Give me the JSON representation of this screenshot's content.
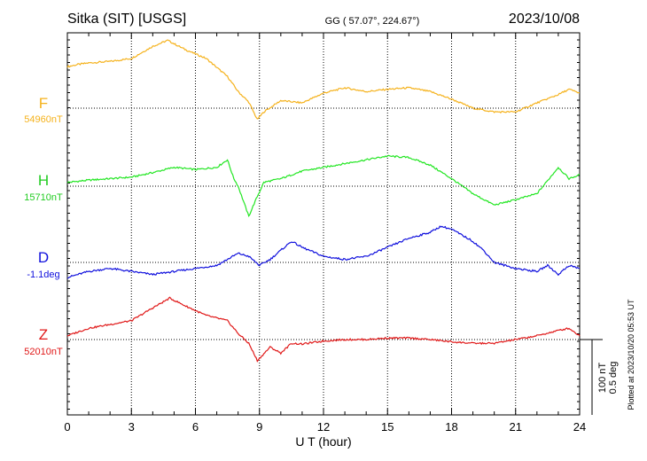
{
  "header": {
    "station": "Sitka (SIT)  [USGS]",
    "coords": "GG ( 57.07°, 224.67°)",
    "date": "2023/10/08"
  },
  "plotted_note": "Plotted at 2023/10/20 05:53 UT",
  "scale_bar": {
    "nt": "100 nT",
    "deg": "0.5 deg"
  },
  "colors": {
    "F": "#f5b21c",
    "H": "#22e622",
    "D": "#1010dd",
    "Z": "#e01818",
    "axis": "#000000"
  },
  "chart_data": {
    "type": "line",
    "xlabel": "U T (hour)",
    "xlim": [
      0,
      24
    ],
    "x_ticks": [
      "0",
      "3",
      "6",
      "9",
      "12",
      "15",
      "18",
      "21",
      "24"
    ],
    "series": [
      {
        "name": "F",
        "baseline_label": "54960nT",
        "baseline": 54960,
        "unit": "nT",
        "x": [
          0,
          0.5,
          1,
          2,
          3,
          4,
          4.7,
          5.5,
          6.5,
          7.5,
          8,
          8.5,
          8.9,
          9.2,
          10,
          11,
          12,
          13,
          14,
          15,
          16,
          17,
          18,
          19,
          20,
          21,
          22,
          23,
          23.5,
          24
        ],
        "y": [
          55,
          58,
          60,
          62,
          66,
          82,
          90,
          78,
          66,
          42,
          22,
          8,
          -15,
          -5,
          10,
          7,
          20,
          27,
          22,
          25,
          27,
          22,
          12,
          0,
          -5,
          -5,
          7,
          18,
          25,
          20
        ]
      },
      {
        "name": "H",
        "baseline_label": "15710nT",
        "baseline": 15710,
        "unit": "nT",
        "x": [
          0,
          1,
          2,
          3,
          4,
          5,
          6,
          7,
          7.5,
          7.8,
          8,
          8.5,
          8.8,
          9.2,
          10,
          11,
          12,
          13,
          14,
          15,
          16,
          17,
          18,
          19,
          20,
          21,
          22,
          23,
          23.5,
          24
        ],
        "y": [
          5,
          8,
          10,
          12,
          18,
          25,
          22,
          25,
          35,
          10,
          0,
          -40,
          -20,
          5,
          10,
          20,
          25,
          30,
          35,
          40,
          38,
          28,
          10,
          -10,
          -25,
          -18,
          -10,
          25,
          10,
          15
        ]
      },
      {
        "name": "D",
        "baseline_label": "-1.1deg",
        "baseline": -1.1,
        "unit": "deg",
        "x": [
          0,
          1,
          2,
          3,
          4,
          5,
          6,
          7,
          7.5,
          8,
          8.5,
          9,
          9.5,
          10,
          10.5,
          11,
          12,
          13,
          14,
          15,
          16,
          17,
          17.5,
          18,
          19,
          19.5,
          20,
          21,
          22,
          22.5,
          23,
          23.5,
          24
        ],
        "y": [
          -0.1,
          -0.06,
          -0.04,
          -0.06,
          -0.08,
          -0.06,
          -0.04,
          -0.02,
          0.02,
          0.06,
          0.04,
          -0.02,
          0.02,
          0.08,
          0.14,
          0.1,
          0.04,
          0.02,
          0.04,
          0.1,
          0.16,
          0.2,
          0.24,
          0.22,
          0.14,
          0.08,
          0.0,
          -0.04,
          -0.06,
          -0.02,
          -0.08,
          -0.02,
          -0.04
        ]
      },
      {
        "name": "Z",
        "baseline_label": "52010nT",
        "baseline": 52010,
        "unit": "nT",
        "x": [
          0,
          1,
          2,
          3,
          4,
          4.8,
          5.5,
          6.5,
          7.5,
          8,
          8.5,
          8.9,
          9.5,
          10,
          10.5,
          11,
          12,
          13,
          14,
          15,
          16,
          17,
          18,
          19,
          20,
          21,
          22,
          23,
          23.5,
          24
        ],
        "y": [
          5,
          15,
          20,
          25,
          42,
          55,
          45,
          32,
          25,
          8,
          -5,
          -28,
          -10,
          -18,
          -5,
          -6,
          -2,
          0,
          0,
          2,
          2,
          0,
          -3,
          -5,
          -5,
          0,
          5,
          12,
          15,
          5
        ]
      }
    ]
  }
}
